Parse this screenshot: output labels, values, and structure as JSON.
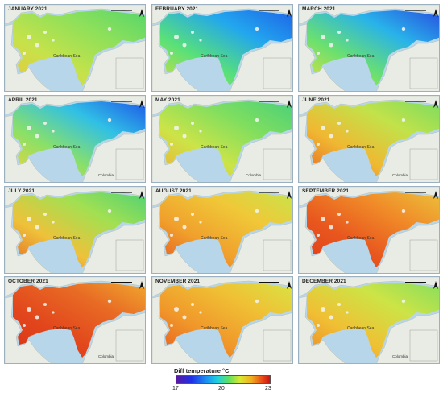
{
  "panels": [
    {
      "title": "JANUARY 2021",
      "sea_label": "Caribbean Sea",
      "country_label": "",
      "colors": [
        "#56d66c",
        "#8ee05a",
        "#c6e24a",
        "#e8c83c"
      ]
    },
    {
      "title": "FEBRUARY 2021",
      "sea_label": "Caribbean Sea",
      "country_label": "",
      "colors": [
        "#1e64e8",
        "#22a6ee",
        "#58e07a",
        "#d0e040"
      ]
    },
    {
      "title": "MARCH 2021",
      "sea_label": "Caribbean Sea",
      "country_label": "",
      "colors": [
        "#2850e0",
        "#28b2ea",
        "#6ae070",
        "#e0e040"
      ]
    },
    {
      "title": "APRIL 2021",
      "sea_label": "Caribbean Sea",
      "country_label": "Colombia",
      "colors": [
        "#1e58e8",
        "#30c0e6",
        "#8ae068",
        "#f0d43a"
      ]
    },
    {
      "title": "MAY 2021",
      "sea_label": "Caribbean Sea",
      "country_label": "Colombia",
      "colors": [
        "#4ad07a",
        "#7ede60",
        "#cce448",
        "#f0b030"
      ]
    },
    {
      "title": "JUNE 2021",
      "sea_label": "Caribbean Sea",
      "country_label": "Colombia",
      "colors": [
        "#7cdc60",
        "#c2e24a",
        "#f0b832",
        "#e86a22"
      ]
    },
    {
      "title": "JULY 2021",
      "sea_label": "Caribbean Sea",
      "country_label": "",
      "colors": [
        "#52d274",
        "#a2e052",
        "#eec23a",
        "#e66a24"
      ]
    },
    {
      "title": "AUGUST 2021",
      "sea_label": "Caribbean Sea",
      "country_label": "",
      "colors": [
        "#c8e44a",
        "#f0c838",
        "#f0a02c",
        "#e65a20"
      ]
    },
    {
      "title": "SEPTEMBER 2021",
      "sea_label": "Caribbean Sea",
      "country_label": "",
      "colors": [
        "#ecc03a",
        "#f08a28",
        "#e8561e",
        "#e03c18"
      ]
    },
    {
      "title": "OCTOBER 2021",
      "sea_label": "Caribbean Sea",
      "country_label": "Colombia",
      "colors": [
        "#f0a82e",
        "#e86a24",
        "#e2461c",
        "#da3416"
      ]
    },
    {
      "title": "NOVEMBER 2021",
      "sea_label": "Caribbean Sea",
      "country_label": "",
      "colors": [
        "#d8e444",
        "#f0c034",
        "#f0962a",
        "#e65a20"
      ]
    },
    {
      "title": "DECEMBER 2021",
      "sea_label": "Caribbean Sea",
      "country_label": "Colombia",
      "colors": [
        "#88de5e",
        "#cce446",
        "#f0c034",
        "#ec8a26"
      ]
    }
  ],
  "legend": {
    "title": "Diff temperature °C",
    "ticks": [
      "17",
      "20",
      "23"
    ],
    "tick_values": [
      17,
      20,
      23
    ],
    "range": [
      17,
      23
    ]
  }
}
